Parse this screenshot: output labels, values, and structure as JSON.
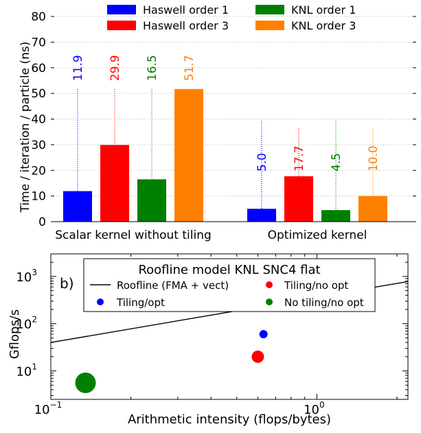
{
  "chart_data": [
    {
      "type": "bar",
      "ylabel": "Time / iteration / particle (ns)",
      "ylim": [
        0,
        80
      ],
      "yticks": [
        "0",
        "10",
        "20",
        "30",
        "40",
        "50",
        "60",
        "70",
        "80"
      ],
      "grid": true,
      "legend_position": "top",
      "categories": [
        "Scalar kernel without tiling",
        "Optimized kernel"
      ],
      "series": [
        {
          "name": "Haswell order 1",
          "color": "#0000ff",
          "values": [
            11.9,
            5.0
          ],
          "labels": [
            "11.9",
            "5.0"
          ]
        },
        {
          "name": "Haswell order 3",
          "color": "#ff0000",
          "values": [
            29.9,
            17.7
          ],
          "labels": [
            "29.9",
            "17.7"
          ]
        },
        {
          "name": "KNL order 1",
          "color": "#008000",
          "values": [
            16.5,
            4.5
          ],
          "labels": [
            "16.5",
            "4.5"
          ]
        },
        {
          "name": "KNL order 3",
          "color": "#ff8000",
          "values": [
            51.7,
            10.0
          ],
          "labels": [
            "51.7",
            "10.0"
          ]
        }
      ]
    },
    {
      "type": "scatter",
      "title": "Roofline model KNL SNC4 flat",
      "panel_label": "b)",
      "xlabel": "Arithmetic intensity (flops/bytes)",
      "ylabel": "Gflops/s",
      "xscale": "log",
      "yscale": "log",
      "xlim": [
        0.1,
        2.2
      ],
      "ylim": [
        2.5,
        3000
      ],
      "xticks": [
        {
          "base": "10",
          "exp": "−1"
        },
        {
          "base": "10",
          "exp": "0"
        }
      ],
      "yticks": [
        {
          "base": "10",
          "exp": "1"
        },
        {
          "base": "10",
          "exp": "2"
        },
        {
          "base": "10",
          "exp": "3"
        }
      ],
      "grid": false,
      "legend_position": "top",
      "roofline": {
        "name": "Roofline (FMA + vect)",
        "color": "#000000",
        "x": [
          0.1,
          2.2
        ],
        "y": [
          40,
          780
        ]
      },
      "series": [
        {
          "name": "Tiling/opt",
          "color": "#0000ff",
          "x": 0.63,
          "y": 60,
          "size": "small"
        },
        {
          "name": "Tiling/no opt",
          "color": "#ff0000",
          "x": 0.6,
          "y": 20,
          "size": "medium"
        },
        {
          "name": "No tiling/no opt",
          "color": "#008000",
          "x": 0.135,
          "y": 5.6,
          "size": "large"
        }
      ]
    }
  ]
}
